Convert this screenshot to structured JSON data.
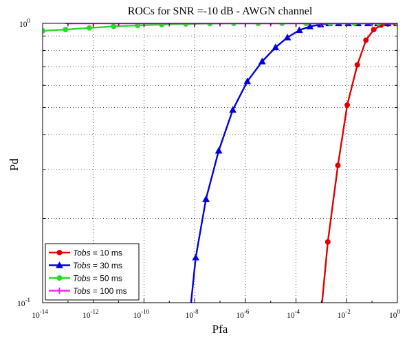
{
  "chart_data": {
    "type": "line",
    "title": "ROCs for SNR =-10 dB - AWGN channel",
    "xlabel": "Pfa",
    "ylabel": "Pd",
    "xscale": "log",
    "yscale": "log",
    "xlim": [
      1e-14,
      1
    ],
    "ylim": [
      0.1,
      1
    ],
    "grid": true,
    "legend_position": "bottom-left",
    "x_ticks": [
      {
        "value": 1e-14,
        "base": "10",
        "exp": "-14"
      },
      {
        "value": 1e-12,
        "base": "10",
        "exp": "-12"
      },
      {
        "value": 1e-10,
        "base": "10",
        "exp": "-10"
      },
      {
        "value": 1e-08,
        "base": "10",
        "exp": "-8"
      },
      {
        "value": 1e-06,
        "base": "10",
        "exp": "-6"
      },
      {
        "value": 0.0001,
        "base": "10",
        "exp": "-4"
      },
      {
        "value": 0.01,
        "base": "10",
        "exp": "-2"
      },
      {
        "value": 1,
        "base": "10",
        "exp": "0"
      }
    ],
    "y_ticks": [
      {
        "value": 0.1,
        "base": "10",
        "exp": "-1"
      },
      {
        "value": 1,
        "base": "10",
        "exp": "0"
      }
    ],
    "series": [
      {
        "name": "Tobs = 10 ms",
        "label_var": "Tobs",
        "label_rest": " = 10 ms",
        "color": "#e00000",
        "marker": "circle",
        "points": [
          [
            0.0009,
            0.085
          ],
          [
            0.0018,
            0.165
          ],
          [
            0.0045,
            0.31
          ],
          [
            0.0105,
            0.51
          ],
          [
            0.0263,
            0.71
          ],
          [
            0.0575,
            0.87
          ],
          [
            0.117,
            0.95
          ],
          [
            0.229,
            0.985
          ],
          [
            0.427,
            0.995
          ],
          [
            0.813,
            1.0
          ],
          [
            1.0,
            1.0
          ]
        ]
      },
      {
        "name": "Tobs = 30 ms",
        "label_var": "Tobs",
        "label_rest": " = 30 ms",
        "color": "#0000dd",
        "marker": "triangle",
        "points": [
          [
            6e-09,
            0.085
          ],
          [
            1.1e-08,
            0.145
          ],
          [
            2.8e-08,
            0.235
          ],
          [
            8.9e-08,
            0.35
          ],
          [
            3.2e-07,
            0.49
          ],
          [
            1.2e-06,
            0.62
          ],
          [
            4.6e-06,
            0.73
          ],
          [
            1.55e-05,
            0.82
          ],
          [
            4.6e-05,
            0.89
          ],
          [
            0.000135,
            0.945
          ],
          [
            0.000355,
            0.975
          ],
          [
            0.00093,
            0.99
          ],
          [
            0.002,
            1.0
          ],
          [
            0.0048,
            1.0
          ],
          [
            0.0115,
            1.0
          ],
          [
            0.028,
            1.0
          ],
          [
            0.069,
            1.0
          ],
          [
            0.17,
            1.0
          ],
          [
            0.42,
            1.0
          ],
          [
            1.0,
            1.0
          ]
        ]
      },
      {
        "name": "Tobs = 50 ms",
        "label_var": "Tobs",
        "label_rest": " = 50 ms",
        "color": "#22dd22",
        "marker": "circle",
        "points": [
          [
            1e-14,
            0.94
          ],
          [
            8e-14,
            0.95
          ],
          [
            7e-13,
            0.963
          ],
          [
            6.3e-12,
            0.975
          ],
          [
            5.6e-11,
            0.983
          ],
          [
            5e-10,
            0.99
          ],
          [
            4.5e-09,
            0.995
          ],
          [
            4e-08,
            0.998
          ],
          [
            3.5e-07,
            1.0
          ],
          [
            3.2e-06,
            1.0
          ],
          [
            2.8e-05,
            1.0
          ],
          [
            0.00025,
            1.0
          ],
          [
            0.0022,
            1.0
          ],
          [
            0.02,
            1.0
          ],
          [
            0.18,
            1.0
          ],
          [
            1.0,
            1.0
          ]
        ]
      },
      {
        "name": "Tobs = 100 ms",
        "label_var": "Tobs",
        "label_rest": " = 100 ms",
        "color": "#ee22ee",
        "marker": "plus",
        "points": [
          [
            1e-13,
            1.0
          ],
          [
            1e-12,
            1.0
          ],
          [
            1e-11,
            1.0
          ],
          [
            1e-10,
            1.0
          ],
          [
            1e-09,
            1.0
          ],
          [
            1e-08,
            1.0
          ],
          [
            1e-07,
            1.0
          ],
          [
            1e-06,
            1.0
          ],
          [
            1e-05,
            1.0
          ],
          [
            0.0001,
            1.0
          ],
          [
            0.001,
            1.0
          ],
          [
            0.01,
            1.0
          ],
          [
            0.1,
            1.0
          ],
          [
            1.0,
            1.0
          ]
        ]
      }
    ]
  }
}
